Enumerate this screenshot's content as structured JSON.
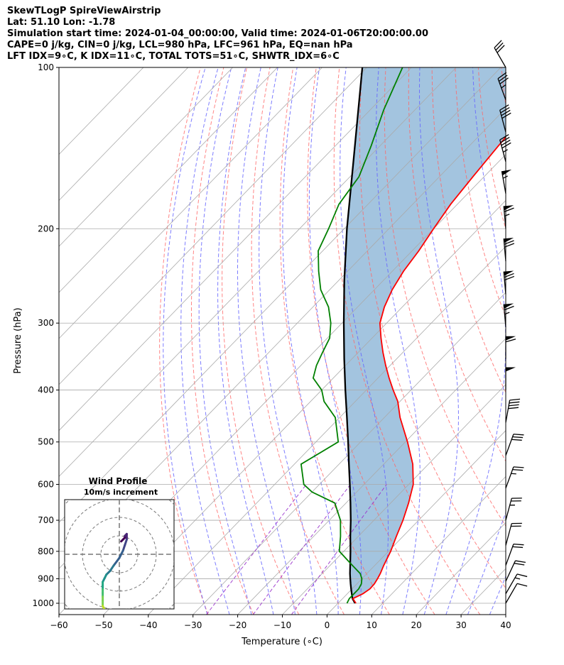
{
  "header": {
    "lines": [
      "SkewTLogP SpireViewAirstrip",
      "Lat: 51.10   Lon: -1.78",
      "Simulation start time: 2024-01-04_00:00:00, Valid time: 2024-01-06T20:00:00.00",
      "CAPE=0 j/kg, CIN=0 j/kg, LCL=980 hPa, LFC=961 hPa, EQ=nan hPa",
      "LFT IDX=9∘C, K IDX=11∘C, TOTAL TOTS=51∘C, SHWTR_IDX=6∘C"
    ]
  },
  "chart_data": {
    "type": "line",
    "subtype": "skew-t log-p",
    "xlabel": "Temperature (∘C)",
    "ylabel": "Pressure (hPa)",
    "xlim": [
      -60,
      40
    ],
    "ylim": [
      1050,
      100
    ],
    "y_scale": "log",
    "x_ticks": [
      "−60",
      "−50",
      "−40",
      "−30",
      "−20",
      "−10",
      "0",
      "10",
      "20",
      "30",
      "40"
    ],
    "y_ticks": [
      "100",
      "200",
      "300",
      "400",
      "500",
      "600",
      "700",
      "800",
      "900",
      "1000"
    ],
    "grid": true,
    "colors": {
      "temperature": "#ff0000",
      "dewpoint": "#008000",
      "parcel": "#000000",
      "fill": "#a3c4df",
      "dry_adiabat": "#ff6666",
      "moist_adiabat": "#6666ff",
      "isotherm": "#aaaaaa",
      "mixing_ratio": "#9932cc",
      "barb": "#000000"
    },
    "series": [
      {
        "key": "temperature",
        "p": [
          1000,
          980,
          960,
          940,
          920,
          900,
          880,
          850,
          800,
          750,
          700,
          650,
          600,
          550,
          500,
          450,
          420,
          400,
          380,
          360,
          340,
          320,
          300,
          280,
          260,
          240,
          220,
          200,
          180,
          160,
          140,
          120,
          100
        ],
        "t": [
          4.0,
          2.3,
          3.5,
          4.0,
          3.9,
          3.5,
          3.0,
          2.0,
          0.5,
          -1.5,
          -3.5,
          -6.0,
          -9.0,
          -13.5,
          -19.5,
          -26.5,
          -30.5,
          -34.0,
          -37.5,
          -41.0,
          -44.5,
          -48.0,
          -51.5,
          -54.0,
          -56.0,
          -57.5,
          -58.5,
          -60.0,
          -61.5,
          -62.5,
          -63.5,
          -64.5,
          -66.0
        ]
      },
      {
        "key": "dewpoint",
        "p": [
          1000,
          980,
          960,
          940,
          920,
          900,
          880,
          850,
          800,
          750,
          700,
          650,
          620,
          600,
          550,
          500,
          450,
          420,
          400,
          380,
          360,
          340,
          320,
          300,
          280,
          260,
          240,
          220,
          200,
          180,
          160,
          140,
          120,
          100
        ],
        "t": [
          2.0,
          1.5,
          1.5,
          1.5,
          1.0,
          0.0,
          -1.5,
          -5.0,
          -11.0,
          -14.0,
          -17.5,
          -22.5,
          -30.0,
          -33.5,
          -38.5,
          -35.0,
          -41.0,
          -47.0,
          -50.0,
          -54.5,
          -56.5,
          -58.0,
          -59.5,
          -62.5,
          -66.5,
          -72.0,
          -76.5,
          -81.0,
          -83.5,
          -86.5,
          -88.0,
          -92.0,
          -97.0,
          -102.0
        ]
      },
      {
        "key": "parcel",
        "p": [
          1000,
          980,
          960,
          940,
          920,
          900,
          880,
          850,
          800,
          750,
          700,
          650,
          600,
          550,
          500,
          450,
          400,
          350,
          300,
          250,
          200,
          150,
          100
        ],
        "t": [
          3.8,
          2.2,
          1.0,
          -0.2,
          -1.4,
          -2.6,
          -3.8,
          -5.5,
          -8.5,
          -11.8,
          -15.2,
          -19.0,
          -23.2,
          -27.8,
          -32.8,
          -38.4,
          -44.7,
          -51.7,
          -59.6,
          -68.7,
          -79.4,
          -92.5,
          -111.0
        ]
      }
    ],
    "wind_barbs": [
      {
        "p": 100,
        "speed_kt": 30,
        "direction_deg": 330
      },
      {
        "p": 115,
        "speed_kt": 35,
        "direction_deg": 340
      },
      {
        "p": 132,
        "speed_kt": 40,
        "direction_deg": 345
      },
      {
        "p": 150,
        "speed_kt": 45,
        "direction_deg": 345
      },
      {
        "p": 172,
        "speed_kt": 55,
        "direction_deg": 350
      },
      {
        "p": 200,
        "speed_kt": 65,
        "direction_deg": 355
      },
      {
        "p": 230,
        "speed_kt": 70,
        "direction_deg": 355
      },
      {
        "p": 265,
        "speed_kt": 70,
        "direction_deg": 355
      },
      {
        "p": 305,
        "speed_kt": 65,
        "direction_deg": 355
      },
      {
        "p": 350,
        "speed_kt": 60,
        "direction_deg": 0
      },
      {
        "p": 400,
        "speed_kt": 50,
        "direction_deg": 0
      },
      {
        "p": 460,
        "speed_kt": 40,
        "direction_deg": 10
      },
      {
        "p": 530,
        "speed_kt": 30,
        "direction_deg": 20
      },
      {
        "p": 610,
        "speed_kt": 25,
        "direction_deg": 20
      },
      {
        "p": 700,
        "speed_kt": 25,
        "direction_deg": 15
      },
      {
        "p": 780,
        "speed_kt": 20,
        "direction_deg": 15
      },
      {
        "p": 850,
        "speed_kt": 20,
        "direction_deg": 20
      },
      {
        "p": 910,
        "speed_kt": 20,
        "direction_deg": 25
      },
      {
        "p": 960,
        "speed_kt": 15,
        "direction_deg": 30
      },
      {
        "p": 1000,
        "speed_kt": 10,
        "direction_deg": 30
      }
    ],
    "hodograph": {
      "title": "Wind Profile",
      "subtitle": "10m/s increment",
      "ring_increment_ms": 10,
      "u_ms": [
        1,
        2,
        3,
        3,
        4,
        4,
        3,
        2,
        0,
        -3,
        -5,
        -7,
        -8,
        -9,
        -9,
        -9,
        -9,
        -9,
        -9,
        -9,
        -8,
        -7,
        -6,
        -5
      ],
      "v_ms": [
        7,
        8,
        9,
        10,
        11,
        8,
        5,
        2,
        -2,
        -6,
        -9,
        -11,
        -13,
        -15,
        -17,
        -19,
        -21,
        -23,
        -25,
        -28,
        -30,
        -32,
        -34,
        -36
      ]
    }
  }
}
